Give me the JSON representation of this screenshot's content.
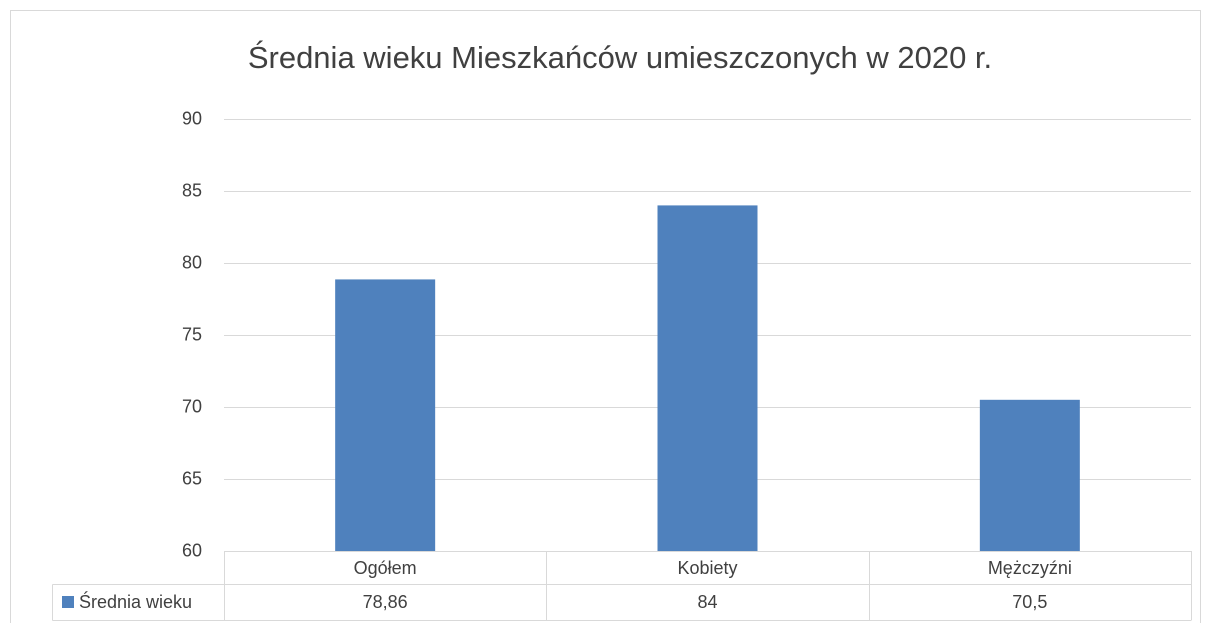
{
  "chart_data": {
    "type": "bar",
    "title": "Średnia wieku Mieszkańców umieszczonych w 2020 r.",
    "categories": [
      "Ogółem",
      "Kobiety",
      "Mężczyźni"
    ],
    "series": [
      {
        "name": "Średnia wieku",
        "color": "#4f81bd",
        "values": [
          78.86,
          84,
          70.5
        ],
        "value_labels": [
          "78,86",
          "84",
          "70,5"
        ]
      }
    ],
    "ylim": [
      60,
      90
    ],
    "yticks": [
      60,
      65,
      70,
      75,
      80,
      85,
      90
    ],
    "grid": true,
    "legend": "data-table"
  }
}
